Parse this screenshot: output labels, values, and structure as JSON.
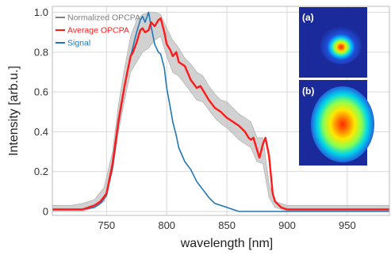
{
  "chart_data": {
    "type": "line",
    "xlabel": "wavelength [nm]",
    "ylabel": "Intensity [arb.u.]",
    "xlim": [
      705,
      985
    ],
    "ylim": [
      -0.02,
      1.03
    ],
    "x_ticks": [
      750,
      800,
      850,
      900,
      950
    ],
    "x_tick_labels": [
      "750",
      "800",
      "850",
      "900",
      "950"
    ],
    "y_ticks": [
      0,
      0.2,
      0.4,
      0.6,
      0.8,
      1.0
    ],
    "y_tick_labels": [
      "0",
      "0.2",
      "0.4",
      "0.6",
      "0.8",
      "1.0"
    ],
    "grid": true,
    "legend_position": "top-left",
    "series": [
      {
        "name": "Normalized OPCPA",
        "color": "#7f7f7f",
        "style": "shaded band",
        "x": [
          705,
          720,
          730,
          740,
          748,
          755,
          760,
          765,
          770,
          775,
          780,
          785,
          790,
          795,
          800,
          805,
          810,
          815,
          820,
          825,
          830,
          835,
          840,
          845,
          850,
          855,
          860,
          865,
          870,
          875,
          880,
          885,
          890,
          900,
          920,
          940,
          960,
          985
        ],
        "lower": [
          0.0,
          0.0,
          0.0,
          0.02,
          0.05,
          0.2,
          0.4,
          0.56,
          0.7,
          0.75,
          0.8,
          0.82,
          0.86,
          0.88,
          0.78,
          0.7,
          0.68,
          0.64,
          0.6,
          0.56,
          0.55,
          0.51,
          0.47,
          0.44,
          0.42,
          0.39,
          0.36,
          0.34,
          0.32,
          0.25,
          0.24,
          0.07,
          0.02,
          0.0,
          0.0,
          0.0,
          0.0,
          0.0
        ],
        "upper": [
          0.03,
          0.03,
          0.04,
          0.06,
          0.12,
          0.3,
          0.54,
          0.72,
          0.88,
          0.96,
          0.99,
          1.0,
          1.0,
          0.99,
          0.92,
          0.86,
          0.82,
          0.77,
          0.74,
          0.7,
          0.68,
          0.63,
          0.59,
          0.56,
          0.55,
          0.52,
          0.49,
          0.47,
          0.45,
          0.37,
          0.37,
          0.14,
          0.05,
          0.03,
          0.03,
          0.03,
          0.03,
          0.03
        ]
      },
      {
        "name": "Average OPCPA",
        "color": "#ff1a1a",
        "x": [
          705,
          720,
          730,
          740,
          745,
          750,
          755,
          760,
          765,
          768,
          770,
          772,
          775,
          778,
          780,
          782,
          785,
          787,
          790,
          793,
          795,
          798,
          800,
          803,
          805,
          808,
          810,
          815,
          820,
          825,
          828,
          830,
          835,
          840,
          845,
          850,
          855,
          860,
          865,
          868,
          870,
          872,
          875,
          877,
          880,
          882,
          885,
          888,
          890,
          895,
          900,
          920,
          940,
          960,
          985
        ],
        "y": [
          0.01,
          0.01,
          0.01,
          0.03,
          0.05,
          0.09,
          0.24,
          0.46,
          0.63,
          0.72,
          0.78,
          0.8,
          0.85,
          0.91,
          0.92,
          0.9,
          0.91,
          0.95,
          0.93,
          0.96,
          0.97,
          0.9,
          0.84,
          0.81,
          0.78,
          0.8,
          0.75,
          0.73,
          0.66,
          0.62,
          0.63,
          0.61,
          0.56,
          0.52,
          0.5,
          0.47,
          0.45,
          0.43,
          0.4,
          0.37,
          0.36,
          0.37,
          0.31,
          0.27,
          0.34,
          0.37,
          0.28,
          0.09,
          0.05,
          0.02,
          0.01,
          0.01,
          0.01,
          0.01,
          0.01
        ]
      },
      {
        "name": "Signal",
        "color": "#1f77b4",
        "x": [
          705,
          720,
          730,
          740,
          745,
          750,
          755,
          760,
          765,
          770,
          775,
          778,
          780,
          782,
          785,
          787,
          790,
          793,
          795,
          798,
          800,
          803,
          805,
          808,
          810,
          815,
          820,
          825,
          830,
          835,
          840,
          845,
          850,
          855,
          860,
          870,
          880,
          890,
          900,
          920,
          950,
          985
        ],
        "y": [
          0.01,
          0.01,
          0.01,
          0.02,
          0.04,
          0.08,
          0.22,
          0.44,
          0.63,
          0.78,
          0.9,
          0.96,
          0.98,
          0.95,
          1.0,
          0.93,
          0.84,
          0.8,
          0.79,
          0.72,
          0.62,
          0.52,
          0.45,
          0.38,
          0.32,
          0.25,
          0.21,
          0.15,
          0.11,
          0.07,
          0.04,
          0.03,
          0.02,
          0.01,
          0.0,
          0.0,
          0.0,
          0.0,
          0.0,
          0.0,
          0.0,
          0.0
        ]
      }
    ],
    "insets": [
      {
        "label": "(a)"
      },
      {
        "label": "(b)"
      }
    ]
  }
}
